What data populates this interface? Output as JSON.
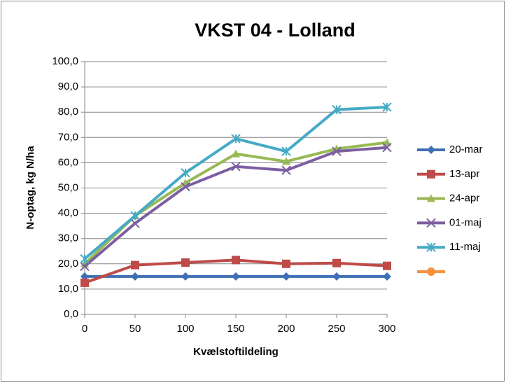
{
  "chart_data": {
    "type": "line",
    "title": "VKST 04 - Lolland",
    "xlabel": "Kvælstoftildeling",
    "ylabel": "N-optag, kg N/ha",
    "x": [
      0,
      50,
      100,
      150,
      200,
      250,
      300
    ],
    "xlim": [
      0,
      300
    ],
    "xticks": [
      0,
      50,
      100,
      150,
      200,
      250,
      300
    ],
    "ylim": [
      0,
      100
    ],
    "yticks": [
      {
        "value": 0,
        "label": "0,0"
      },
      {
        "value": 10,
        "label": "10,0"
      },
      {
        "value": 20,
        "label": "20,0"
      },
      {
        "value": 30,
        "label": "30,0"
      },
      {
        "value": 40,
        "label": "40,0"
      },
      {
        "value": 50,
        "label": "50,0"
      },
      {
        "value": 60,
        "label": "60,0"
      },
      {
        "value": 70,
        "label": "70,0"
      },
      {
        "value": 80,
        "label": "80,0"
      },
      {
        "value": 90,
        "label": "90,0"
      },
      {
        "value": 100,
        "label": "100,0"
      }
    ],
    "grid": true,
    "legend": "right",
    "series": [
      {
        "name": "20-mar",
        "color": "#3f6fb5",
        "marker": "diamond",
        "values": [
          15,
          15,
          15,
          15,
          15,
          15,
          15
        ]
      },
      {
        "name": "13-apr",
        "color": "#be4b48",
        "marker": "square",
        "values": [
          12.5,
          19.5,
          20.5,
          21.5,
          20,
          20.3,
          19.2
        ]
      },
      {
        "name": "24-apr",
        "color": "#98b954",
        "marker": "triangle",
        "values": [
          20,
          39,
          52,
          63.5,
          60.5,
          65.5,
          68
        ]
      },
      {
        "name": "01-maj",
        "color": "#7d5fa0",
        "marker": "x",
        "values": [
          19,
          36,
          50.5,
          58.5,
          57,
          64.5,
          66
        ]
      },
      {
        "name": "11-maj",
        "color": "#46aac5",
        "marker": "star",
        "values": [
          22,
          39,
          56,
          69.5,
          64.5,
          81,
          82
        ]
      },
      {
        "color": "#f69240",
        "marker": "circle",
        "values": [
          null,
          null,
          null,
          null,
          null,
          null,
          null
        ]
      }
    ]
  }
}
